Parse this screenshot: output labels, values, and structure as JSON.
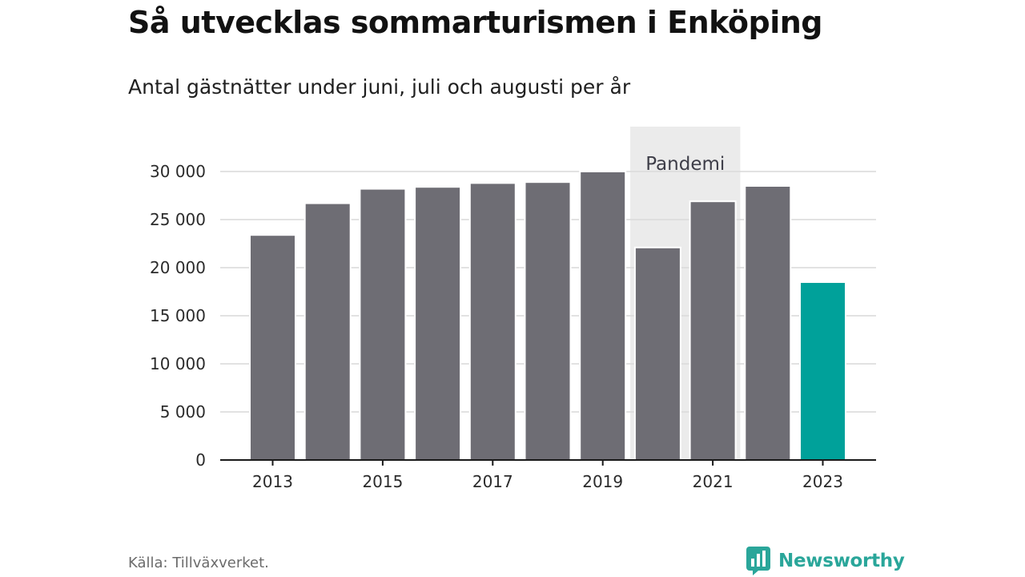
{
  "chart_data": {
    "type": "bar",
    "title": "Så utvecklas sommarturismen i Enköping",
    "subtitle": "Antal gästnätter under juni, juli och augusti per år",
    "categories": [
      "2013",
      "2014",
      "2015",
      "2016",
      "2017",
      "2018",
      "2019",
      "2020",
      "2021",
      "2022",
      "2023"
    ],
    "values": [
      23400,
      26700,
      28200,
      28400,
      28800,
      28900,
      30000,
      22100,
      26900,
      28500,
      18500
    ],
    "x_tick_labels": [
      "2013",
      "2015",
      "2017",
      "2019",
      "2021",
      "2023"
    ],
    "y_ticks": [
      0,
      5000,
      10000,
      15000,
      20000,
      25000,
      30000
    ],
    "y_tick_labels": [
      "0",
      "5 000",
      "10 000",
      "15 000",
      "20 000",
      "25 000",
      "30 000"
    ],
    "ylim": [
      0,
      30000
    ],
    "grid": true,
    "annotation": {
      "label": "Pandemi",
      "from": "2020",
      "to": "2021"
    },
    "highlight": {
      "category": "2023"
    }
  },
  "colors": {
    "bar": "#6e6d74",
    "highlight": "#00a19a",
    "band": "#ebebeb",
    "grid": "#d9d9d9",
    "axis": "#1a1a1a"
  },
  "source": "Källa: Tillväxverket.",
  "brand": {
    "name": "Newsworthy",
    "icon": "bar-chart-logo-icon"
  }
}
